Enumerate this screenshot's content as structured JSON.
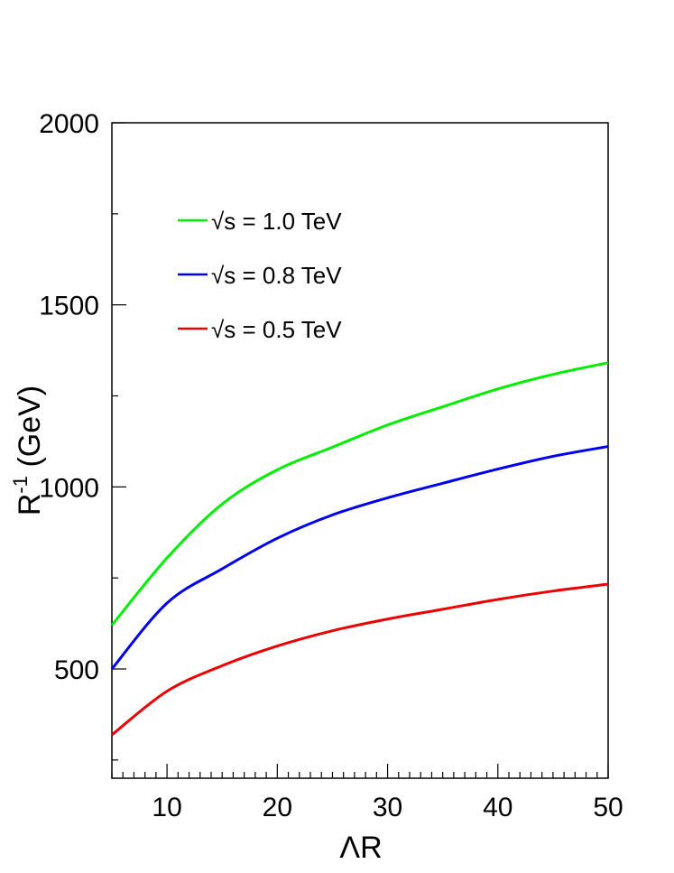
{
  "chart_data": {
    "type": "line",
    "title": "",
    "xlabel": "ΛR",
    "ylabel_main": "R",
    "ylabel_sup": "-1",
    "ylabel_unit": " (GeV)",
    "xlim": [
      5,
      50
    ],
    "ylim": [
      200,
      2000
    ],
    "xticks": [
      10,
      20,
      30,
      40,
      50
    ],
    "yticks": [
      500,
      1000,
      1500,
      2000
    ],
    "grid": false,
    "legend_position": "top-left",
    "x": [
      5,
      10,
      15,
      20,
      25,
      30,
      35,
      40,
      45,
      50
    ],
    "series": [
      {
        "name": "√s = 1.0 TeV",
        "color": "#00ee00",
        "values": [
          620,
          805,
          953,
          1047,
          1109,
          1170,
          1220,
          1269,
          1309,
          1341
        ]
      },
      {
        "name": "√s = 0.8 TeV",
        "color": "#0000ee",
        "values": [
          500,
          681,
          775,
          859,
          923,
          970,
          1010,
          1049,
          1084,
          1111
        ]
      },
      {
        "name": "√s = 0.5 TeV",
        "color": "#ee0000",
        "values": [
          319,
          439,
          509,
          563,
          605,
          637,
          664,
          691,
          714,
          733
        ]
      }
    ]
  }
}
